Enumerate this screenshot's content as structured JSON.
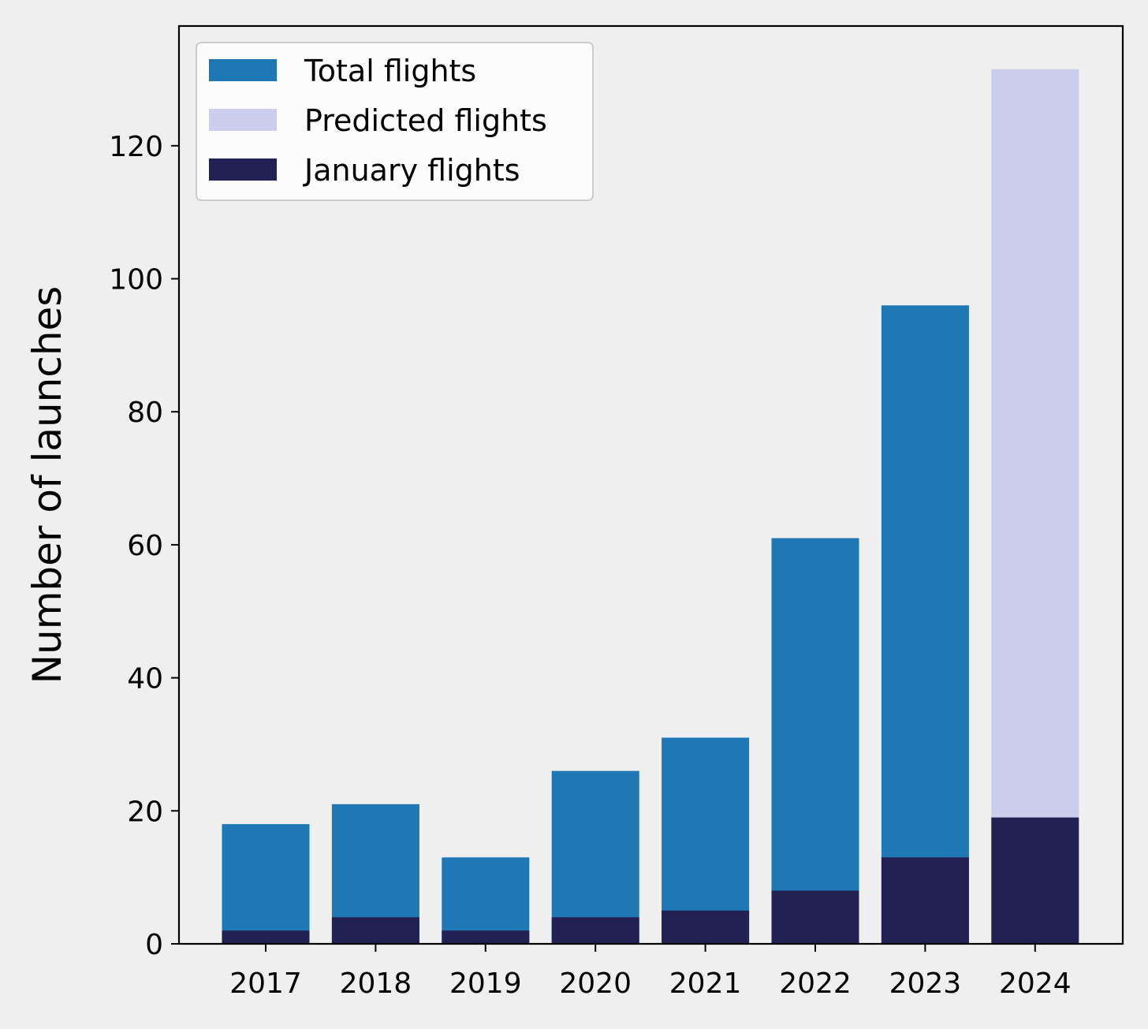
{
  "chart_data": {
    "type": "bar",
    "title": "",
    "xlabel": "",
    "ylabel": "Number of launches",
    "categories": [
      "2017",
      "2018",
      "2019",
      "2020",
      "2021",
      "2022",
      "2023",
      "2024"
    ],
    "ylim": [
      0,
      138
    ],
    "yticks": [
      0,
      20,
      40,
      60,
      80,
      100,
      120
    ],
    "grid": false,
    "legend_position": "upper-left",
    "series": [
      {
        "name": "Total flights",
        "color": "#1f77b4",
        "values": [
          18,
          21,
          13,
          26,
          31,
          61,
          96,
          null
        ]
      },
      {
        "name": "Predicted flights",
        "color": "#cccced",
        "values": [
          null,
          null,
          null,
          null,
          null,
          null,
          null,
          131.5
        ]
      },
      {
        "name": "January flights",
        "color": "#212153",
        "values": [
          2,
          4,
          2,
          4,
          5,
          8,
          13,
          19
        ]
      }
    ]
  }
}
